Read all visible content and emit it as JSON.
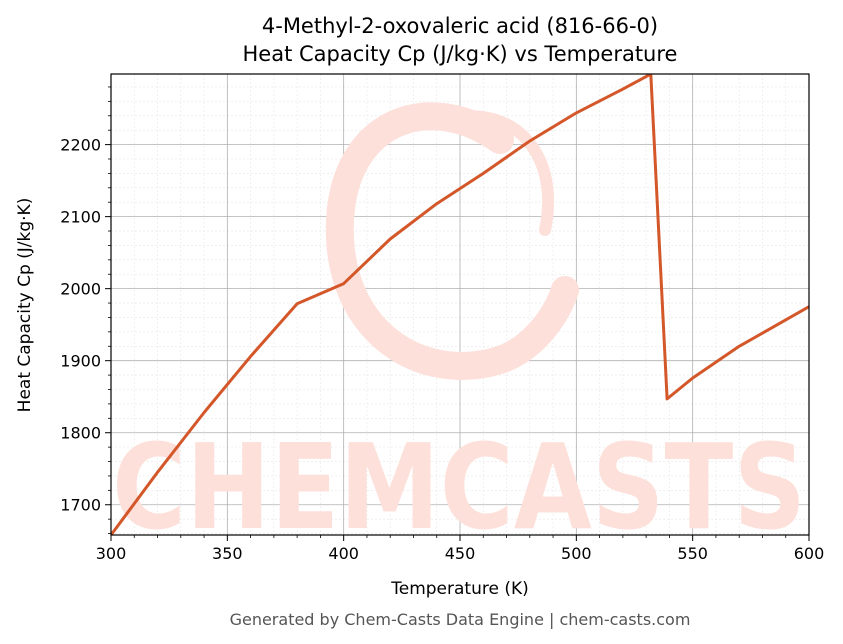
{
  "chart_data": {
    "type": "line",
    "title": "4-Methyl-2-oxovaleric acid (816-66-0)",
    "subtitle": "Heat Capacity Cp (J/kg·K) vs Temperature",
    "xlabel": "Temperature (K)",
    "ylabel": "Heat Capacity Cp (J/kg·K)",
    "xlim": [
      300,
      600
    ],
    "ylim": [
      1658,
      2298
    ],
    "xticks": [
      300,
      350,
      400,
      450,
      500,
      550,
      600
    ],
    "yticks": [
      1700,
      1800,
      1900,
      2000,
      2100,
      2200
    ],
    "grid": true,
    "line_color": "#d4572a",
    "series": [
      {
        "x": [
          300,
          320,
          340,
          360,
          380,
          400,
          420,
          440,
          460,
          480,
          500,
          520,
          532,
          539,
          550,
          570,
          600
        ],
        "y": [
          1658,
          1745,
          1828,
          1906,
          1979,
          2007,
          2069,
          2118,
          2160,
          2205,
          2244,
          2277,
          2298,
          1847,
          1876,
          1920,
          1975
        ]
      }
    ]
  },
  "watermark": "CHEMCASTS",
  "footer": "Generated by Chem-Casts Data Engine | chem-casts.com"
}
